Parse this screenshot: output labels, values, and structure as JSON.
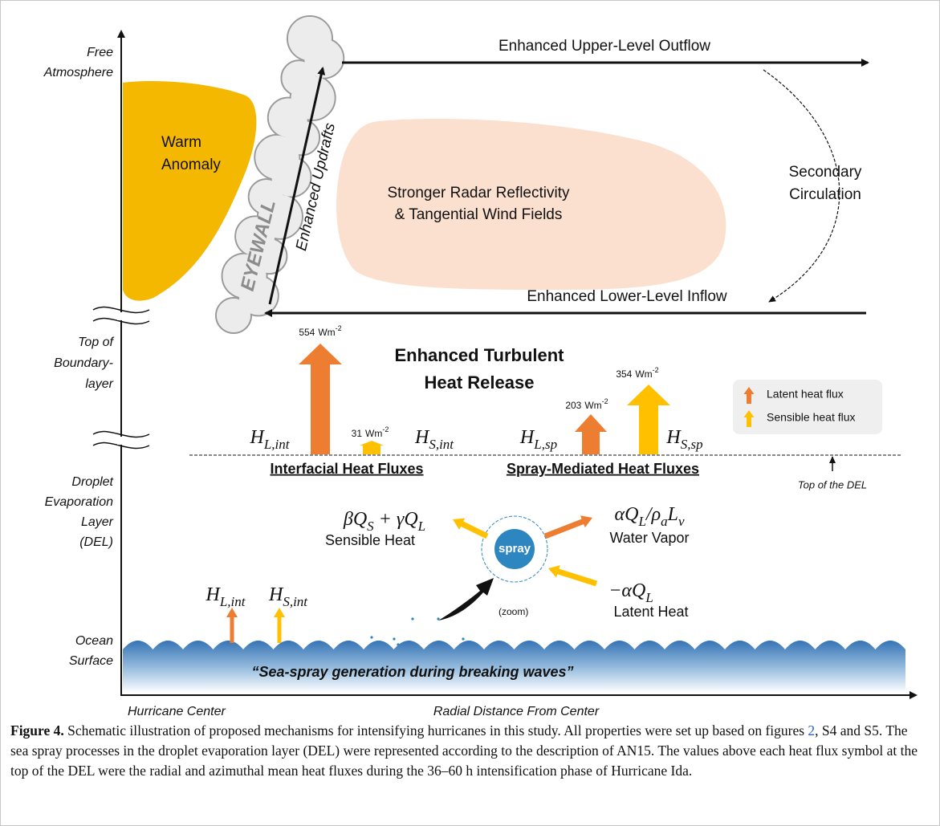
{
  "axis_labels": {
    "free_atmosphere": [
      "Free",
      "Atmosphere"
    ],
    "top_of_boundary_layer": [
      "Top of",
      "Boundary-",
      "layer"
    ],
    "droplet_evaporation_layer": [
      "Droplet",
      "Evaporation",
      "Layer",
      "(DEL)"
    ],
    "ocean_surface": [
      "Ocean",
      "Surface"
    ],
    "hurricane_center": "Hurricane Center",
    "radial_distance": "Radial Distance From Center"
  },
  "regions": {
    "warm_anomaly": [
      "Warm",
      "Anomaly"
    ],
    "eyewall": "EYEWALL",
    "updrafts": "Enhanced Updrafts",
    "reflectivity": [
      "Stronger Radar Reflectivity",
      "& Tangential Wind Fields"
    ],
    "secondary_circulation": [
      "Secondary",
      "Circulation"
    ],
    "outflow": "Enhanced Upper-Level Outflow",
    "inflow": "Enhanced Lower-Level Inflow"
  },
  "heat_release": [
    "Enhanced Turbulent",
    "Heat Release"
  ],
  "fluxes": [
    {
      "symbol": "H",
      "sub": "L,int",
      "value": 554,
      "unit": "Wm",
      "exponent": "-2"
    },
    {
      "symbol": "H",
      "sub": "S,int",
      "value": 31,
      "unit": "Wm",
      "exponent": "-2"
    },
    {
      "symbol": "H",
      "sub": "L,sp",
      "value": 203,
      "unit": "Wm",
      "exponent": "-2"
    },
    {
      "symbol": "H",
      "sub": "S,sp",
      "value": 354,
      "unit": "Wm",
      "exponent": "-2"
    }
  ],
  "flux_groups": [
    "Interfacial Heat Fluxes",
    "Spray-Mediated Heat Fluxes"
  ],
  "top_of_del": "Top of the DEL",
  "legend": [
    "Latent heat flux",
    "Sensible heat flux"
  ],
  "spray": {
    "label": "spray",
    "zoom": "(zoom)",
    "sensible": {
      "equation": [
        {
          "t": "βQ",
          "sub": "S"
        },
        {
          "t": " + γQ",
          "sub": "L"
        }
      ],
      "label": "Sensible Heat"
    },
    "vapor": {
      "equation": [
        {
          "t": "αQ",
          "sub": "L"
        },
        {
          "t": "/ρ",
          "sub": "a"
        },
        {
          "t": "L",
          "sub": "v"
        }
      ],
      "label": "Water Vapor"
    },
    "latent": {
      "equation": [
        {
          "t": "−αQ",
          "sub": "L"
        }
      ],
      "label": "Latent Heat"
    }
  },
  "surface_fluxes": [
    {
      "symbol": "H",
      "sub": "L,int"
    },
    {
      "symbol": "H",
      "sub": "S,int"
    }
  ],
  "ocean_text": "“Sea-spray generation during breaking waves”",
  "caption": {
    "label": "Figure 4.",
    "text_before": " Schematic illustration of proposed mechanisms for intensifying hurricanes in this study. All properties were set up based on figures ",
    "link": "2",
    "text_after": ", S4 and S5. The sea spray processes in the droplet evaporation layer (DEL) were represented according to the description of AN15. The values above each heat flux symbol at the top of the DEL were the radial and azimuthal mean heat fluxes during the 36–60 h intensification phase of Hurricane Ida."
  }
}
